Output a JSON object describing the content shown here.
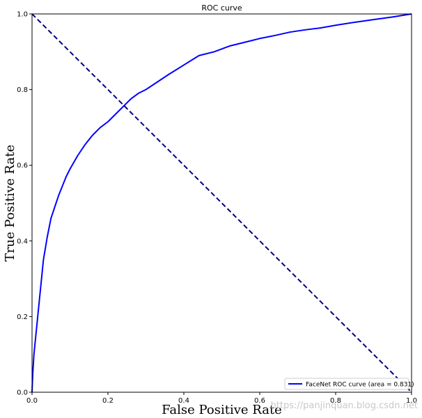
{
  "chart_data": {
    "type": "line",
    "title": "ROC curve",
    "xlabel": "False Positive Rate",
    "ylabel": "True Positive Rate",
    "xlim": [
      0.0,
      1.0
    ],
    "ylim": [
      0.0,
      1.0
    ],
    "xticks": [
      "0.0",
      "0.2",
      "0.4",
      "0.6",
      "0.8",
      "1.0"
    ],
    "yticks": [
      "0.0",
      "0.2",
      "0.4",
      "0.6",
      "0.8",
      "1.0"
    ],
    "grid": false,
    "legend_position": "lower-right",
    "series": [
      {
        "name": "FaceNet ROC curve (area = 0.831)",
        "color": "#0000ff",
        "style": "solid",
        "x": [
          0.0,
          0.002,
          0.005,
          0.01,
          0.015,
          0.02,
          0.025,
          0.03,
          0.035,
          0.04,
          0.05,
          0.06,
          0.07,
          0.08,
          0.09,
          0.1,
          0.12,
          0.14,
          0.16,
          0.18,
          0.2,
          0.22,
          0.24,
          0.26,
          0.28,
          0.3,
          0.33,
          0.36,
          0.4,
          0.44,
          0.48,
          0.52,
          0.56,
          0.6,
          0.64,
          0.68,
          0.72,
          0.76,
          0.8,
          0.85,
          0.9,
          0.95,
          1.0
        ],
        "y": [
          0.0,
          0.05,
          0.1,
          0.15,
          0.2,
          0.25,
          0.3,
          0.35,
          0.38,
          0.41,
          0.46,
          0.49,
          0.52,
          0.545,
          0.57,
          0.59,
          0.625,
          0.655,
          0.68,
          0.7,
          0.715,
          0.735,
          0.755,
          0.775,
          0.79,
          0.8,
          0.82,
          0.84,
          0.865,
          0.89,
          0.9,
          0.915,
          0.925,
          0.935,
          0.943,
          0.952,
          0.958,
          0.963,
          0.97,
          0.978,
          0.985,
          0.992,
          1.0
        ]
      },
      {
        "name": "",
        "color": "#000080",
        "style": "dashed",
        "x": [
          0.0,
          1.0
        ],
        "y": [
          1.0,
          0.0
        ]
      }
    ],
    "legend_entries": [
      "FaceNet ROC curve (area = 0.831)"
    ]
  },
  "watermark": "https://panjinquan.blog.csdn.net"
}
